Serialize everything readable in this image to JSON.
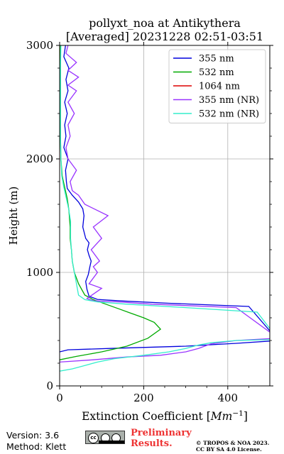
{
  "chart_data": {
    "type": "line",
    "title_line1": "pollyxt_noa at Antikythera",
    "title_line2": "[Averaged] 20231228 02:51-03:51",
    "xlabel": "Extinction Coefficient [$Mm^{-1}$]",
    "xlabel_text": "Extinction Coefficient [",
    "xlabel_unit": "Mm",
    "xlabel_sup": "−1",
    "xlabel_close": "]",
    "ylabel": "Height (m)",
    "xlim": [
      0,
      500
    ],
    "ylim": [
      0,
      3000
    ],
    "xticks": [
      0,
      200,
      400
    ],
    "xtick_labels": [
      "0",
      "200",
      "400"
    ],
    "yticks": [
      0,
      1000,
      2000,
      3000
    ],
    "ytick_labels": [
      "0",
      "1000",
      "2000",
      "3000"
    ],
    "grid": true,
    "legend_position": "top-right",
    "series": [
      {
        "name": "355 nm",
        "color": "#0000dd",
        "points": [
          [
            0,
            300
          ],
          [
            20,
            318
          ],
          [
            120,
            330
          ],
          [
            300,
            350
          ],
          [
            420,
            375
          ],
          [
            520,
            400
          ],
          [
            450,
            700
          ],
          [
            260,
            728
          ],
          [
            150,
            748
          ],
          [
            90,
            762
          ],
          [
            70,
            790
          ],
          [
            65,
            850
          ],
          [
            62,
            920
          ],
          [
            68,
            980
          ],
          [
            72,
            1050
          ],
          [
            75,
            1100
          ],
          [
            70,
            1150
          ],
          [
            66,
            1200
          ],
          [
            70,
            1260
          ],
          [
            62,
            1300
          ],
          [
            55,
            1400
          ],
          [
            58,
            1500
          ],
          [
            55,
            1560
          ],
          [
            45,
            1620
          ],
          [
            30,
            1680
          ],
          [
            18,
            1740
          ],
          [
            16,
            1800
          ],
          [
            14,
            1900
          ],
          [
            20,
            2000
          ],
          [
            10,
            2100
          ],
          [
            15,
            2200
          ],
          [
            12,
            2300
          ],
          [
            18,
            2400
          ],
          [
            12,
            2500
          ],
          [
            20,
            2600
          ],
          [
            15,
            2700
          ],
          [
            22,
            2800
          ],
          [
            10,
            2900
          ],
          [
            14,
            3000
          ]
        ]
      },
      {
        "name": "532 nm",
        "color": "#00aa00",
        "points": [
          [
            0,
            230
          ],
          [
            40,
            260
          ],
          [
            100,
            300
          ],
          [
            160,
            350
          ],
          [
            210,
            420
          ],
          [
            240,
            500
          ],
          [
            225,
            560
          ],
          [
            200,
            600
          ],
          [
            170,
            640
          ],
          [
            140,
            680
          ],
          [
            110,
            720
          ],
          [
            80,
            760
          ],
          [
            60,
            800
          ],
          [
            45,
            900
          ],
          [
            35,
            1000
          ],
          [
            30,
            1100
          ],
          [
            28,
            1200
          ],
          [
            25,
            1300
          ],
          [
            25,
            1400
          ],
          [
            22,
            1550
          ],
          [
            18,
            1650
          ],
          [
            12,
            1750
          ],
          [
            6,
            1850
          ],
          [
            3,
            2000
          ],
          [
            2,
            2200
          ],
          [
            2,
            2500
          ],
          [
            2,
            2800
          ],
          [
            2,
            3000
          ]
        ]
      },
      {
        "name": "1064 nm",
        "color": "#dd0000",
        "points": []
      },
      {
        "name": "355 nm (NR)",
        "color": "#9933ff",
        "points": [
          [
            0,
            210
          ],
          [
            80,
            230
          ],
          [
            160,
            255
          ],
          [
            240,
            270
          ],
          [
            300,
            300
          ],
          [
            330,
            330
          ],
          [
            360,
            370
          ],
          [
            420,
            400
          ],
          [
            520,
            420
          ],
          [
            420,
            690
          ],
          [
            220,
            720
          ],
          [
            140,
            740
          ],
          [
            80,
            750
          ],
          [
            65,
            770
          ],
          [
            100,
            860
          ],
          [
            70,
            900
          ],
          [
            90,
            1000
          ],
          [
            80,
            1050
          ],
          [
            95,
            1100
          ],
          [
            75,
            1200
          ],
          [
            100,
            1300
          ],
          [
            80,
            1400
          ],
          [
            115,
            1500
          ],
          [
            60,
            1600
          ],
          [
            45,
            1680
          ],
          [
            30,
            1720
          ],
          [
            25,
            1800
          ],
          [
            40,
            1900
          ],
          [
            20,
            2000
          ],
          [
            15,
            2100
          ],
          [
            25,
            2200
          ],
          [
            20,
            2300
          ],
          [
            35,
            2400
          ],
          [
            20,
            2500
          ],
          [
            40,
            2600
          ],
          [
            20,
            2650
          ],
          [
            45,
            2720
          ],
          [
            20,
            2780
          ],
          [
            40,
            2850
          ],
          [
            15,
            2930
          ],
          [
            20,
            3000
          ]
        ]
      },
      {
        "name": "532 nm (NR)",
        "color": "#33eecc",
        "points": [
          [
            0,
            130
          ],
          [
            30,
            150
          ],
          [
            60,
            180
          ],
          [
            90,
            210
          ],
          [
            130,
            240
          ],
          [
            200,
            270
          ],
          [
            260,
            300
          ],
          [
            300,
            330
          ],
          [
            330,
            360
          ],
          [
            360,
            380
          ],
          [
            420,
            400
          ],
          [
            520,
            410
          ],
          [
            470,
            650
          ],
          [
            300,
            690
          ],
          [
            160,
            720
          ],
          [
            90,
            740
          ],
          [
            60,
            760
          ],
          [
            45,
            800
          ],
          [
            40,
            900
          ],
          [
            35,
            1000
          ],
          [
            30,
            1100
          ],
          [
            28,
            1200
          ],
          [
            26,
            1300
          ],
          [
            26,
            1450
          ],
          [
            22,
            1550
          ],
          [
            16,
            1650
          ],
          [
            10,
            1750
          ],
          [
            5,
            1850
          ],
          [
            3,
            2000
          ],
          [
            2,
            2200
          ],
          [
            2,
            2500
          ],
          [
            2,
            2800
          ],
          [
            3,
            3000
          ]
        ]
      }
    ]
  },
  "footer": {
    "version": "Version: 3.6",
    "method": "Method: Klett",
    "license_badge": "cc BY SA",
    "preliminary_line1": "Preliminary",
    "preliminary_line2": "Results.",
    "copyright_line1": "© TROPOS & NOA 2023.",
    "copyright_line2": "CC BY SA 4.0 License."
  }
}
